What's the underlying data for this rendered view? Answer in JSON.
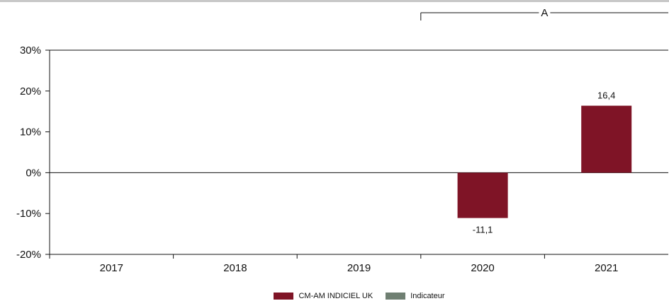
{
  "chart_data": {
    "type": "bar",
    "categories": [
      "2017",
      "2018",
      "2019",
      "2020",
      "2021"
    ],
    "series": [
      {
        "name": "CM-AM INDICIEL UK",
        "color": "#7f1426",
        "values": [
          null,
          null,
          null,
          -11.1,
          16.4
        ],
        "labels": [
          "",
          "",
          "",
          "-11,1",
          "16,4"
        ]
      },
      {
        "name": "Indicateur",
        "color": "#6f7f72",
        "values": [
          null,
          null,
          null,
          null,
          null
        ],
        "labels": [
          "",
          "",
          "",
          "",
          ""
        ]
      }
    ],
    "ylim": [
      -20,
      30
    ],
    "yticks": [
      30,
      20,
      10,
      0,
      -10,
      -20
    ],
    "ytick_labels": [
      "30%",
      "20%",
      "10%",
      "0%",
      "-10%",
      "-20%"
    ],
    "period_bracket": {
      "label": "A",
      "from": "2020",
      "to": "2021"
    },
    "legend_position": "bottom-center"
  }
}
